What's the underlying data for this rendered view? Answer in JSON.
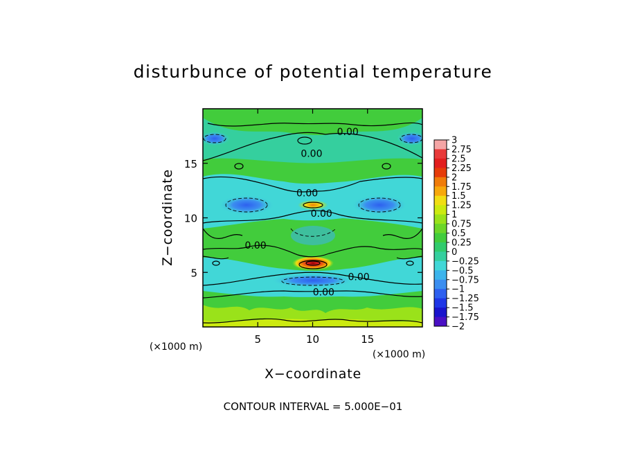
{
  "chart_data": {
    "type": "heatmap",
    "title": "disturbunce of potential temperature",
    "xlabel": "X−coordinate",
    "ylabel": "Z−coordinate",
    "x_unit": "(×1000 m)",
    "y_unit": "(×1000 m)",
    "xlim": [
      0,
      20
    ],
    "ylim": [
      0,
      20
    ],
    "x_ticks": [
      5,
      10,
      15
    ],
    "y_ticks": [
      5,
      10,
      15
    ],
    "x_tick_labels": [
      "5",
      "10",
      "15"
    ],
    "y_tick_labels": [
      "5",
      "10",
      "15"
    ],
    "contour_labels": [
      {
        "text": "0.00",
        "x": 13.2,
        "z": 17.9
      },
      {
        "text": "0.00",
        "x": 9.9,
        "z": 15.9
      },
      {
        "text": "0.00",
        "x": 9.5,
        "z": 12.3
      },
      {
        "text": "0.00",
        "x": 10.8,
        "z": 10.4
      },
      {
        "text": "0.00",
        "x": 4.8,
        "z": 7.5
      },
      {
        "text": "0.00",
        "x": 14.2,
        "z": 4.6
      },
      {
        "text": "0.00",
        "x": 11.0,
        "z": 3.2
      }
    ],
    "features": [
      {
        "label": "warm core",
        "x": 10.0,
        "z": 5.8,
        "value": 3.0
      },
      {
        "label": "warm core",
        "x": 10.0,
        "z": 11.2,
        "value": 1.6
      },
      {
        "label": "cold band",
        "x": 10.0,
        "z": 4.1,
        "value": -0.6
      },
      {
        "label": "cold lobe",
        "x": 4.0,
        "z": 11.1,
        "value": -0.5
      },
      {
        "label": "cold lobe",
        "x": 16.0,
        "z": 11.1,
        "value": -0.5
      },
      {
        "label": "cold lobe",
        "x": 1.0,
        "z": 17.3,
        "value": -0.6
      },
      {
        "label": "cold lobe",
        "x": 19.0,
        "z": 17.3,
        "value": -0.6
      },
      {
        "label": "warm base",
        "x": 10.0,
        "z": 0.5,
        "value": 1.0
      }
    ],
    "colorbar": {
      "levels": [
        3,
        2.75,
        2.5,
        2.25,
        2,
        1.75,
        1.5,
        1.25,
        1,
        0.75,
        0.5,
        0.25,
        0,
        -0.25,
        -0.5,
        -0.75,
        -1,
        -1.25,
        -1.5,
        -1.75,
        -2
      ],
      "labels": [
        "3",
        "2.75",
        "2.5",
        "2.25",
        "2",
        "1.75",
        "1.5",
        "1.25",
        "1",
        "0.75",
        "0.5",
        "0.25",
        "0",
        "−0.25",
        "−0.5",
        "−0.75",
        "−1",
        "−1.25",
        "−1.5",
        "−1.75",
        "−2"
      ],
      "colors": [
        "#f4a6a6",
        "#e83a3a",
        "#e21e1e",
        "#e63c0a",
        "#f07c0a",
        "#f7a80c",
        "#f1de14",
        "#ccea10",
        "#9ae21a",
        "#6cd628",
        "#42cc3c",
        "#31cb6c",
        "#35cf9e",
        "#41d7d7",
        "#3cb4ec",
        "#3b8ef0",
        "#2e60ef",
        "#1f36e6",
        "#1a14cc",
        "#4a10c4",
        "#7213b0"
      ]
    },
    "grid": false
  },
  "footer": {
    "contour_interval": "CONTOUR INTERVAL = 5.000E−01"
  },
  "colors": {
    "contour_line": "#000000",
    "background": "#ffffff"
  }
}
